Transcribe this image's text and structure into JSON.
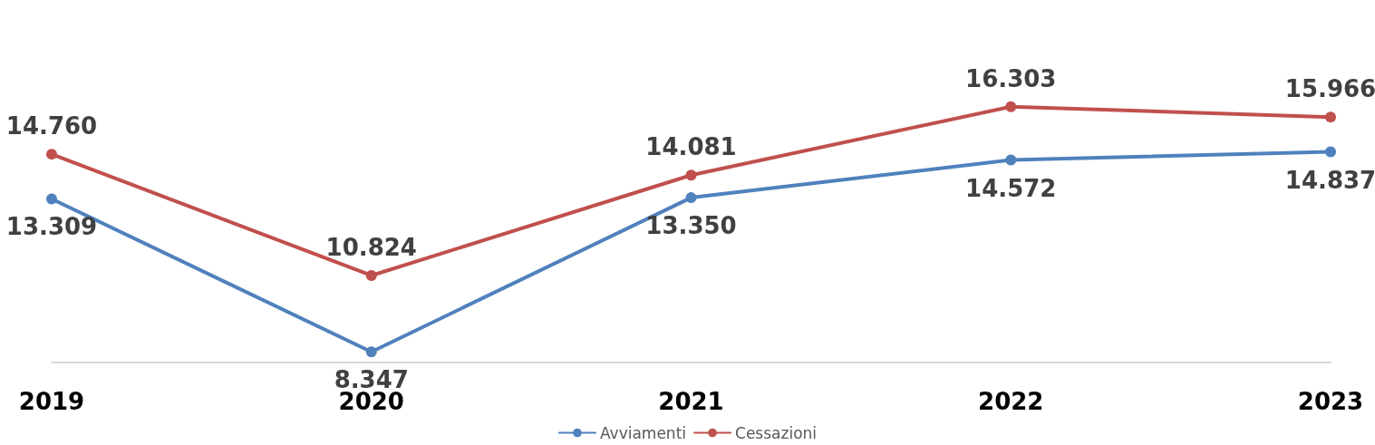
{
  "chart_data": {
    "type": "line",
    "categories": [
      "2019",
      "2020",
      "2021",
      "2022",
      "2023"
    ],
    "series": [
      {
        "name": "Avviamenti",
        "color": "#4f81bd",
        "values": [
          13309,
          8347,
          13350,
          14572,
          14837
        ],
        "value_labels": [
          "13.309",
          "8.347",
          "13.350",
          "14.572",
          "14.837"
        ]
      },
      {
        "name": "Cessazioni",
        "color": "#c0504d",
        "values": [
          14760,
          10824,
          14081,
          16303,
          15966
        ],
        "value_labels": [
          "14.760",
          "10.824",
          "14.081",
          "16.303",
          "15.966"
        ]
      }
    ],
    "legend": "bottom",
    "marker": "circle",
    "line_style": "solid",
    "grid": false
  }
}
